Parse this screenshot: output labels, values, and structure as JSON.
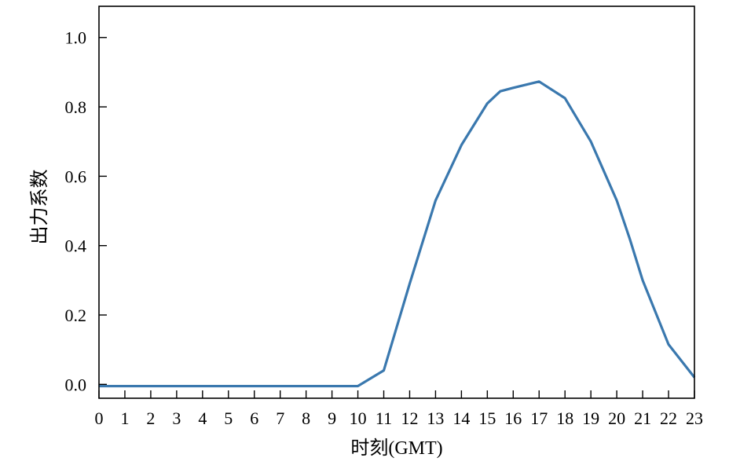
{
  "chart_data": {
    "type": "line",
    "title": "",
    "xlabel": "时刻(GMT)",
    "ylabel": "出力系数",
    "xlim": [
      0,
      23
    ],
    "ylim": [
      -0.04,
      1.09
    ],
    "x_ticks": [
      0,
      1,
      2,
      3,
      4,
      5,
      6,
      7,
      8,
      9,
      10,
      11,
      12,
      13,
      14,
      15,
      16,
      17,
      18,
      19,
      20,
      21,
      22,
      23
    ],
    "x_tick_labels": [
      "0",
      "1",
      "2",
      "3",
      "4",
      "5",
      "6",
      "7",
      "8",
      "9",
      "10",
      "11",
      "12",
      "13",
      "14",
      "15",
      "16",
      "17",
      "18",
      "19",
      "20",
      "21",
      "22",
      "23"
    ],
    "y_ticks": [
      0.0,
      0.2,
      0.4,
      0.6,
      0.8,
      1.0
    ],
    "y_tick_labels": [
      "0.0",
      "0.2",
      "0.4",
      "0.6",
      "0.8",
      "1.0"
    ],
    "grid": false,
    "series": [
      {
        "color": "#3a78ae",
        "x": [
          0,
          1,
          2,
          3,
          4,
          5,
          6,
          7,
          8,
          9,
          10,
          11,
          12,
          13,
          14,
          15,
          15.5,
          16,
          17,
          18,
          19,
          20,
          20.5,
          21,
          22,
          23
        ],
        "y": [
          -0.005,
          -0.005,
          -0.005,
          -0.005,
          -0.005,
          -0.005,
          -0.005,
          -0.005,
          -0.005,
          -0.005,
          -0.005,
          0.04,
          0.29,
          0.53,
          0.69,
          0.81,
          0.845,
          0.855,
          0.873,
          0.825,
          0.7,
          0.53,
          0.42,
          0.3,
          0.115,
          0.02
        ]
      }
    ]
  }
}
